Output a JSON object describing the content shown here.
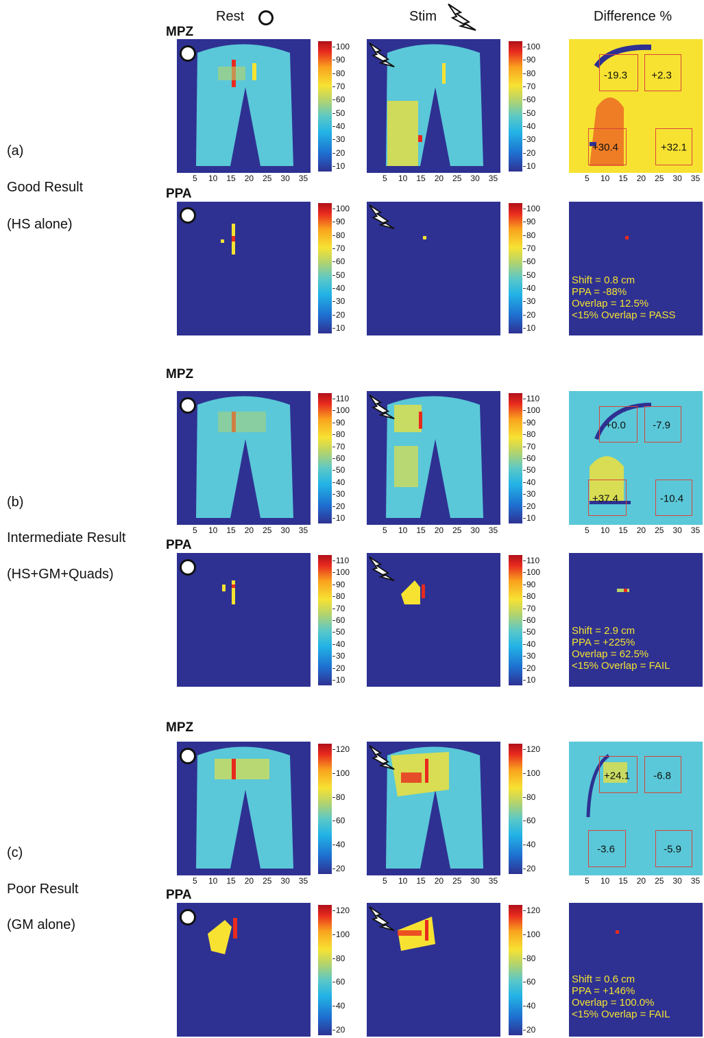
{
  "columns": [
    "Rest",
    "Stim",
    "Difference %"
  ],
  "sections": {
    "mpz": "MPZ",
    "ppa": "PPA"
  },
  "rows": [
    {
      "id": "a",
      "label": "(a)",
      "result": "Good Result",
      "condition": "(HS alone)",
      "mpz_ticks": [
        "100",
        "90",
        "80",
        "70",
        "60",
        "50",
        "40",
        "30",
        "20",
        "10"
      ],
      "ppa_ticks": [
        "100",
        "90",
        "80",
        "70",
        "60",
        "50",
        "40",
        "30",
        "20",
        "10"
      ],
      "diff_regions": [
        "-19.3",
        "+2.3",
        "+30.4",
        "+32.1"
      ],
      "stats": [
        "Shift = 0.8 cm",
        "PPA = -88%",
        "Overlap = 12.5%",
        "<15% Overlap = PASS"
      ]
    },
    {
      "id": "b",
      "label": "(b)",
      "result": "Intermediate Result",
      "condition": "(HS+GM+Quads)",
      "mpz_ticks": [
        "110",
        "100",
        "90",
        "80",
        "70",
        "60",
        "50",
        "40",
        "30",
        "20",
        "10"
      ],
      "ppa_ticks": [
        "110",
        "100",
        "90",
        "80",
        "70",
        "60",
        "50",
        "40",
        "30",
        "20",
        "10"
      ],
      "diff_regions": [
        "+0.0",
        "-7.9",
        "+37.4",
        "-10.4"
      ],
      "stats": [
        "Shift = 2.9 cm",
        "PPA = +225%",
        "Overlap = 62.5%",
        "<15% Overlap = FAIL"
      ]
    },
    {
      "id": "c",
      "label": "(c)",
      "result": "Poor Result",
      "condition": "(GM alone)",
      "mpz_ticks": [
        "120",
        "100",
        "80",
        "60",
        "40",
        "20"
      ],
      "ppa_ticks": [
        "120",
        "100",
        "80",
        "60",
        "40",
        "20"
      ],
      "diff_regions": [
        "+24.1",
        "-6.8",
        "-3.6",
        "-5.9"
      ],
      "stats": [
        "Shift = 0.6 cm",
        "PPA = +146%",
        "Overlap = 100.0%",
        "<15% Overlap = FAIL"
      ]
    }
  ],
  "x_ticks": [
    "5",
    "10",
    "15",
    "20",
    "25",
    "30",
    "35"
  ],
  "colors": {
    "background": "#2e3192",
    "stats_text": "#f5e331",
    "region_box": "#d8453a"
  },
  "chart_data": {
    "type": "heatmap",
    "title": "",
    "xlabel": "",
    "ylabel": "",
    "xlim": [
      0,
      37
    ],
    "x_ticks": [
      5,
      10,
      15,
      20,
      25,
      30,
      35
    ],
    "colorbar_ranges": {
      "a": [
        0,
        105
      ],
      "b": [
        0,
        115
      ],
      "c": [
        0,
        125
      ]
    },
    "legend": "none",
    "grid": false,
    "difference_regions": {
      "a": [
        -19.3,
        2.3,
        30.4,
        32.1
      ],
      "b": [
        0.0,
        -7.9,
        37.4,
        -10.4
      ],
      "c": [
        24.1,
        -6.8,
        -3.6,
        -5.9
      ]
    },
    "ppa_stats": {
      "a": {
        "shift_cm": 0.8,
        "ppa_pct": -88,
        "overlap_pct": 12.5,
        "result": "PASS"
      },
      "b": {
        "shift_cm": 2.9,
        "ppa_pct": 225,
        "overlap_pct": 62.5,
        "result": "FAIL"
      },
      "c": {
        "shift_cm": 0.6,
        "ppa_pct": 146,
        "overlap_pct": 100.0,
        "result": "FAIL"
      }
    }
  }
}
